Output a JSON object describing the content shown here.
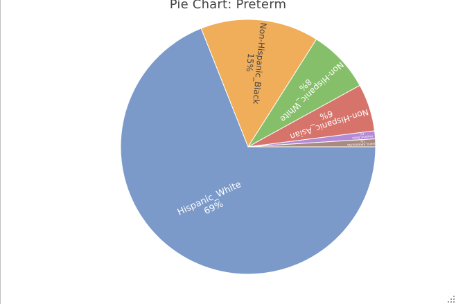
{
  "chart_data": {
    "type": "pie",
    "title": "Pie Chart: Preterm",
    "slices": [
      {
        "label": "Hispanic_White",
        "percent_text": "69%",
        "value": 69.0,
        "color": "#7b9ac9",
        "text_color": "#ffffff"
      },
      {
        "label": "Non-Hispanic_Black",
        "percent_text": "15%",
        "value": 15.0,
        "color": "#f0ad5a",
        "text_color": "#444444"
      },
      {
        "label": "Non-Hispanic_White",
        "percent_text": "8%",
        "value": 8.0,
        "color": "#85bf69",
        "text_color": "#ffffff"
      },
      {
        "label": "Non-Hispanic_Asian",
        "percent_text": "6%",
        "value": 6.0,
        "color": "#d6736a",
        "text_color": "#ffffff"
      },
      {
        "label": "Hispanic_Black",
        "percent_text": "1%",
        "value": 1.0,
        "color": "#b38ad6",
        "text_color": "#ffffff"
      },
      {
        "label": "Hispanic_AIANotherNA",
        "percent_text": "1%",
        "value": 1.0,
        "color": "#a88a7e",
        "text_color": "#ffffff"
      }
    ],
    "start_angle_deg": 0,
    "direction": "clockwise",
    "labels_inside": true,
    "legend": "none"
  }
}
